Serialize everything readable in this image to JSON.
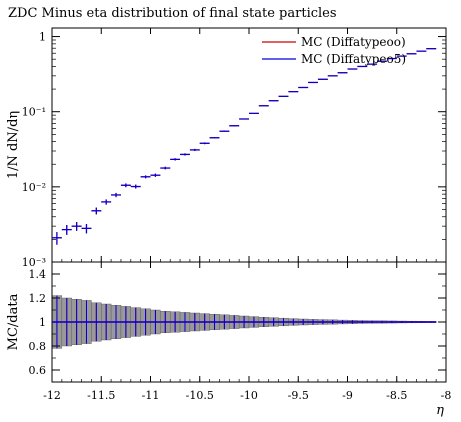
{
  "chart_data": {
    "type": "scatter",
    "title": "ZDC Minus eta distribution of final state particles",
    "xlabel": "η",
    "ylabel": "1/N dN/dη",
    "ratio_ylabel": "MC/data",
    "xlim": [
      -12,
      -8
    ],
    "ylim": [
      0.001,
      1.3
    ],
    "yscale": "log",
    "ratio_ylim": [
      0.5,
      1.5
    ],
    "legend_position": "top-right",
    "x_ticks": [
      "-12",
      "-11.5",
      "-11",
      "-10.5",
      "-10",
      "-9.5",
      "-9",
      "-8.5",
      "-8"
    ],
    "y_ticks": [
      "1",
      "10⁻¹",
      "10⁻²",
      "10⁻³"
    ],
    "ratio_ticks": [
      "1.4",
      "1.2",
      "1",
      "0.8",
      "0.6"
    ],
    "bin_width": 0.1,
    "x": [
      -11.95,
      -11.85,
      -11.75,
      -11.65,
      -11.55,
      -11.45,
      -11.35,
      -11.25,
      -11.15,
      -11.05,
      -10.95,
      -10.85,
      -10.75,
      -10.65,
      -10.55,
      -10.45,
      -10.35,
      -10.25,
      -10.15,
      -10.05,
      -9.95,
      -9.85,
      -9.75,
      -9.65,
      -9.55,
      -9.45,
      -9.35,
      -9.25,
      -9.15,
      -9.05,
      -8.95,
      -8.85,
      -8.75,
      -8.65,
      -8.55,
      -8.45,
      -8.35,
      -8.25,
      -8.15
    ],
    "series": [
      {
        "name": "MC (Diffatypeoo)",
        "color": "#cc0000",
        "values": [
          0.0021,
          0.0027,
          0.003,
          0.0028,
          0.0048,
          0.0063,
          0.0078,
          0.0105,
          0.0101,
          0.0136,
          0.0143,
          0.0178,
          0.0232,
          0.027,
          0.031,
          0.038,
          0.045,
          0.055,
          0.065,
          0.08,
          0.095,
          0.12,
          0.14,
          0.16,
          0.185,
          0.21,
          0.245,
          0.27,
          0.3,
          0.33,
          0.37,
          0.4,
          0.43,
          0.47,
          0.51,
          0.55,
          0.59,
          0.64,
          0.69
        ],
        "errors": [
          0.0004,
          0.0004,
          0.0004,
          0.0004,
          0.0005,
          0.0005,
          0.0005,
          0.0006,
          0.0006,
          0.0006,
          0.0007,
          0.0007,
          0.0008,
          0.0009,
          0.001,
          0.001,
          0.001,
          0.001,
          0.001,
          0.001,
          0.001,
          0.001,
          0.001,
          0.001,
          0.001,
          0.001,
          0.001,
          0.001,
          0.001,
          0.001,
          0.001,
          0.001,
          0.001,
          0.001,
          0.001,
          0.001,
          0.001,
          0.001,
          0.001
        ]
      },
      {
        "name": "MC (Diffatypeo5)",
        "color": "#0000dd",
        "values": [
          0.0021,
          0.0027,
          0.003,
          0.0028,
          0.0048,
          0.0063,
          0.0078,
          0.0105,
          0.0101,
          0.0136,
          0.0143,
          0.0178,
          0.0232,
          0.027,
          0.031,
          0.038,
          0.045,
          0.055,
          0.065,
          0.08,
          0.095,
          0.12,
          0.14,
          0.16,
          0.185,
          0.21,
          0.245,
          0.27,
          0.3,
          0.33,
          0.37,
          0.4,
          0.43,
          0.47,
          0.51,
          0.55,
          0.59,
          0.64,
          0.69
        ],
        "errors": [
          0.0004,
          0.0004,
          0.0004,
          0.0004,
          0.0005,
          0.0005,
          0.0005,
          0.0006,
          0.0006,
          0.0006,
          0.0007,
          0.0007,
          0.0008,
          0.0009,
          0.001,
          0.001,
          0.001,
          0.001,
          0.001,
          0.001,
          0.001,
          0.001,
          0.001,
          0.001,
          0.001,
          0.001,
          0.001,
          0.001,
          0.001,
          0.001,
          0.001,
          0.001,
          0.001,
          0.001,
          0.001,
          0.001,
          0.001,
          0.001,
          0.001
        ]
      }
    ],
    "ratio_band": [
      0.22,
      0.2,
      0.19,
      0.18,
      0.16,
      0.15,
      0.14,
      0.13,
      0.12,
      0.11,
      0.1,
      0.09,
      0.085,
      0.08,
      0.075,
      0.07,
      0.065,
      0.06,
      0.055,
      0.05,
      0.045,
      0.04,
      0.036,
      0.032,
      0.028,
      0.025,
      0.022,
      0.02,
      0.018,
      0.016,
      0.014,
      0.012,
      0.011,
      0.01,
      0.009,
      0.008,
      0.007,
      0.006,
      0.005
    ],
    "ratio_band_color": "#999999",
    "ratio_values": [
      1,
      1,
      1,
      1,
      1,
      1,
      1,
      1,
      1,
      1,
      1,
      1,
      1,
      1,
      1,
      1,
      1,
      1,
      1,
      1,
      1,
      1,
      1,
      1,
      1,
      1,
      1,
      1,
      1,
      1,
      1,
      1,
      1,
      1,
      1,
      1,
      1,
      1,
      1
    ]
  }
}
